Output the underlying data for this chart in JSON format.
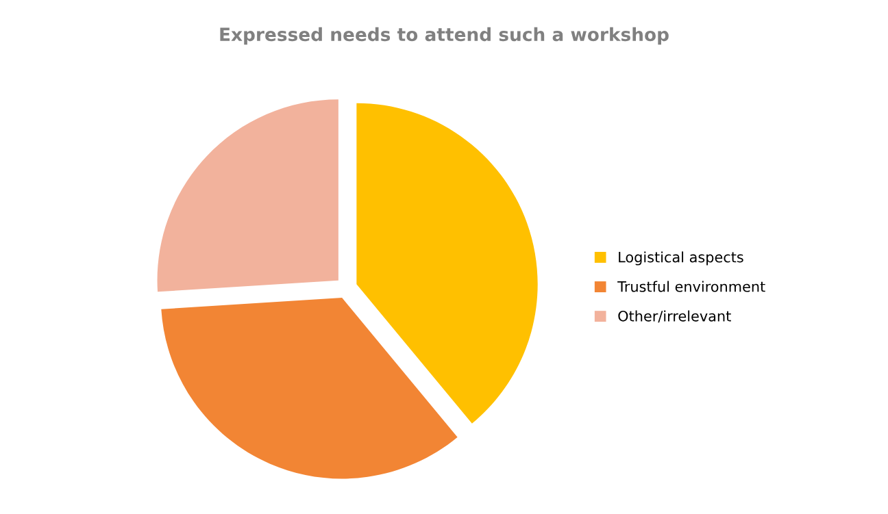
{
  "chart_data": {
    "type": "pie",
    "title": "Expressed needs to attend such a workshop",
    "categories": [
      "Logistical aspects",
      "Trustful environment",
      "Other/irrelevant"
    ],
    "values": [
      39,
      35,
      26
    ],
    "colors": [
      "#ffc000",
      "#f28534",
      "#f2b29c"
    ],
    "legend": "right"
  }
}
